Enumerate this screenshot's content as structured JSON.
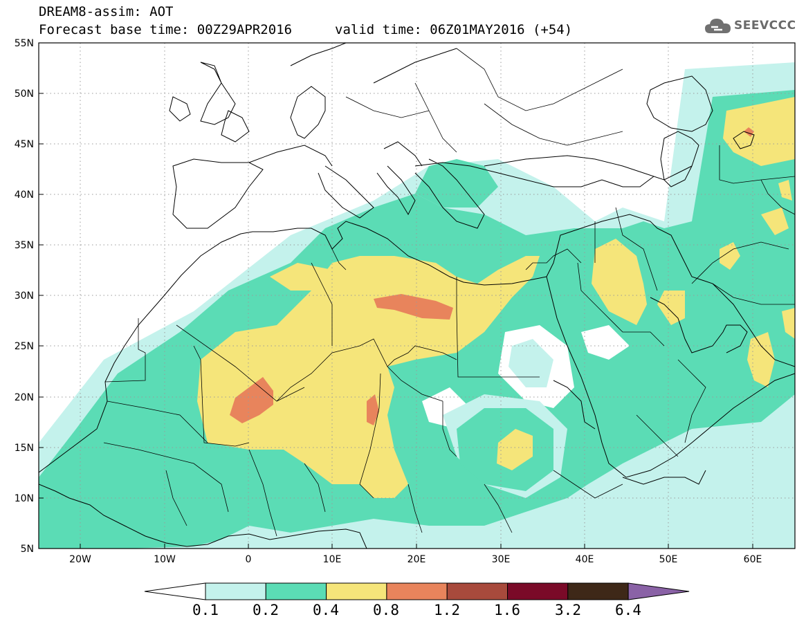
{
  "header": {
    "title": "DREAM8-assim: AOT",
    "base_time": "Forecast base time: 00Z29APR2016",
    "valid_time": "valid time: 06Z01MAY2016 (+54)",
    "logo_text": "SEEVCCC",
    "logo_icon": "cloud-icon"
  },
  "map": {
    "projection": "lat-lon",
    "lon_range": [
      -25,
      65
    ],
    "lat_range": [
      5,
      55
    ],
    "lat_labels": [
      "55N",
      "50N",
      "45N",
      "40N",
      "35N",
      "30N",
      "25N",
      "20N",
      "15N",
      "10N",
      "5N"
    ],
    "lon_labels": [
      "20W",
      "10W",
      "0",
      "10E",
      "20E",
      "30E",
      "40E",
      "50E",
      "60E"
    ],
    "grid": "dotted"
  },
  "colorbar": {
    "labels": [
      "0.1",
      "0.2",
      "0.4",
      "0.8",
      "1.2",
      "1.6",
      "3.2",
      "6.4"
    ],
    "colors": [
      "#ffffff",
      "#c4f2ec",
      "#5bdcb5",
      "#f5e57a",
      "#e8845c",
      "#a84a3c",
      "#7a0a28",
      "#3e2818",
      "#8a62a6"
    ]
  }
}
